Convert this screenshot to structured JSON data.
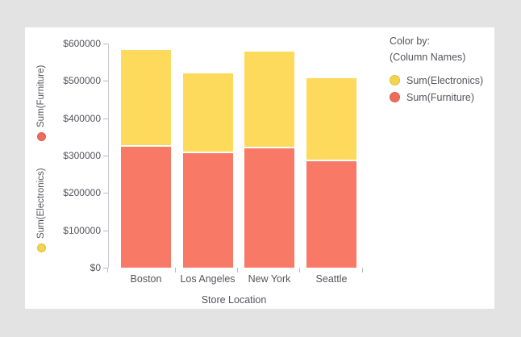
{
  "colors": {
    "background": "#e3e3e3",
    "panel": "#ffffff",
    "axis_line": "#c7c9cf",
    "text": "#54545c",
    "electronics_bar": "#fdd95c",
    "furniture_bar": "#f87a66",
    "electronics_dot": "#f3d54c",
    "electronics_dot_border": "#ddbe3e",
    "furniture_dot": "#ee6a5b",
    "furniture_dot_border": "#d95e50"
  },
  "y_axis": {
    "selectors": [
      {
        "label": "Sum(Furniture)",
        "dot": "furniture-color-dot"
      },
      {
        "label": "Sum(Electronics)",
        "dot": "electronics-color-dot"
      }
    ],
    "ticks": [
      "$600000",
      "$500000",
      "$400000",
      "$300000",
      "$200000",
      "$100000",
      "$0"
    ]
  },
  "x_axis": {
    "title": "Store Location",
    "categories": [
      "Boston",
      "Los Angeles",
      "New York",
      "Seattle"
    ]
  },
  "legend": {
    "title": "Color by:",
    "subtitle": "(Column Names)",
    "items": [
      {
        "label": "Sum(Electronics)",
        "swatch": "electronics-swatch"
      },
      {
        "label": "Sum(Furniture)",
        "swatch": "furniture-swatch"
      }
    ]
  },
  "chart_data": {
    "type": "bar",
    "stacked": true,
    "title": "",
    "xlabel": "Store Location",
    "ylabel": "Sum(Furniture), Sum(Electronics)",
    "categories": [
      "Boston",
      "Los Angeles",
      "New York",
      "Seattle"
    ],
    "series": [
      {
        "name": "Sum(Furniture)",
        "color": "#f87a66",
        "values": [
          324000,
          306000,
          320000,
          284000
        ]
      },
      {
        "name": "Sum(Electronics)",
        "color": "#fdd95c",
        "values": [
          258000,
          214000,
          258000,
          222000
        ]
      }
    ],
    "ylim": [
      0,
      600000
    ],
    "ytick_interval": 100000,
    "ytick_format": "$",
    "grid": false,
    "legend_position": "right",
    "legend_title": "Color by: (Column Names)"
  }
}
